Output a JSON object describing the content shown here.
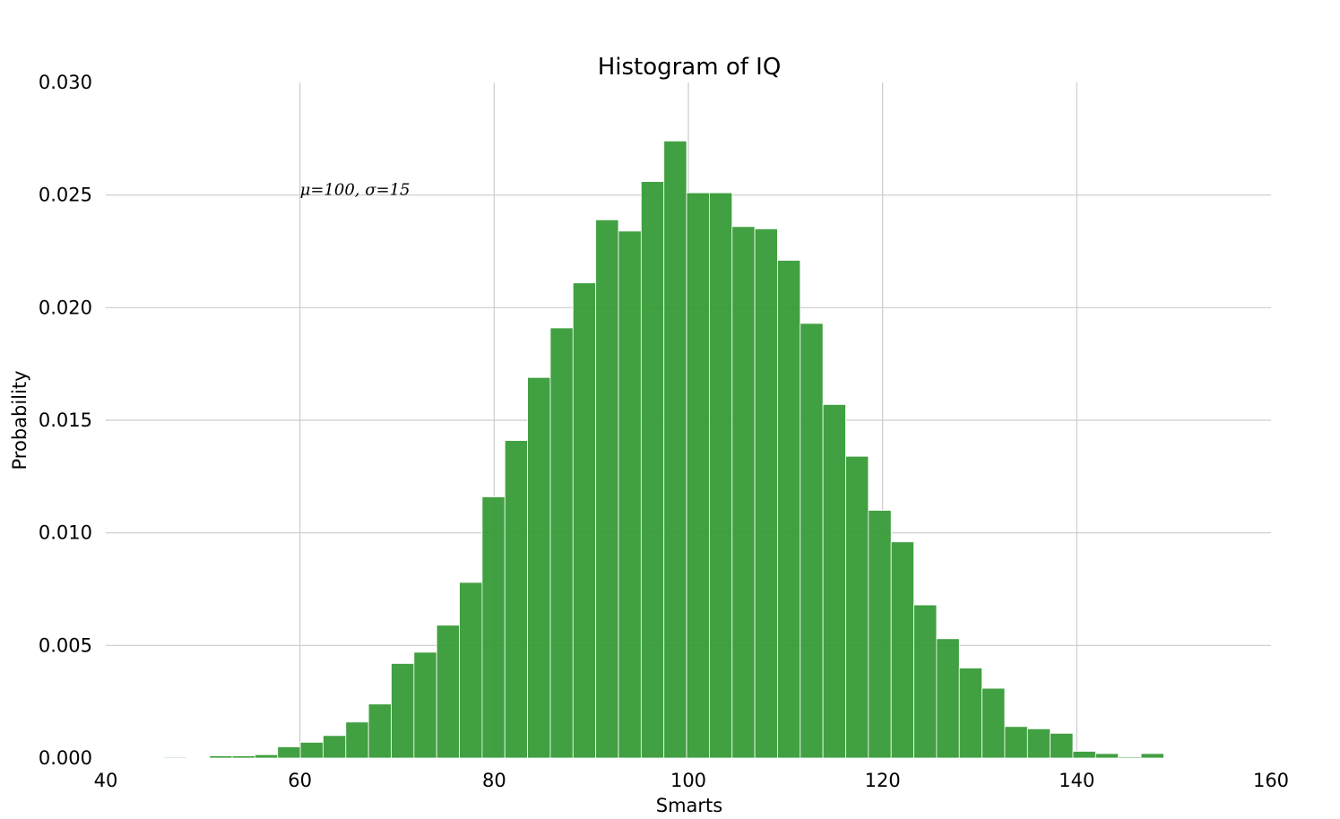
{
  "chart_data": {
    "type": "bar",
    "title": "Histogram of IQ",
    "xlabel": "Smarts",
    "ylabel": "Probability",
    "xlim": [
      40,
      160
    ],
    "ylim": [
      0,
      0.03
    ],
    "x_ticks": [
      40,
      60,
      80,
      100,
      120,
      140,
      160
    ],
    "y_ticks": [
      0.0,
      0.005,
      0.01,
      0.015,
      0.02,
      0.025,
      0.03
    ],
    "x_tick_labels": [
      "40",
      "60",
      "80",
      "100",
      "120",
      "140",
      "160"
    ],
    "y_tick_labels": [
      "0.000",
      "0.005",
      "0.010",
      "0.015",
      "0.020",
      "0.025",
      "0.030"
    ],
    "grid": true,
    "bar_color": "#339933",
    "grid_color": "#cccccc",
    "annotation": {
      "text": "μ=100,  σ=15",
      "x": 60,
      "y": 0.025
    },
    "bins": {
      "start": 46.0,
      "width": 2.34,
      "values": [
        4e-05,
        0.0,
        0.0001,
        0.0001,
        0.00015,
        0.0005,
        0.0007,
        0.001,
        0.0016,
        0.0024,
        0.0042,
        0.0047,
        0.0059,
        0.0078,
        0.0116,
        0.0141,
        0.0169,
        0.0191,
        0.0211,
        0.0239,
        0.0234,
        0.0256,
        0.0274,
        0.0251,
        0.0251,
        0.0236,
        0.0235,
        0.0221,
        0.0193,
        0.0157,
        0.0134,
        0.011,
        0.0096,
        0.0068,
        0.0053,
        0.004,
        0.0031,
        0.0014,
        0.0013,
        0.0011,
        0.0003,
        0.0002,
        5e-05,
        0.0002
      ]
    }
  }
}
